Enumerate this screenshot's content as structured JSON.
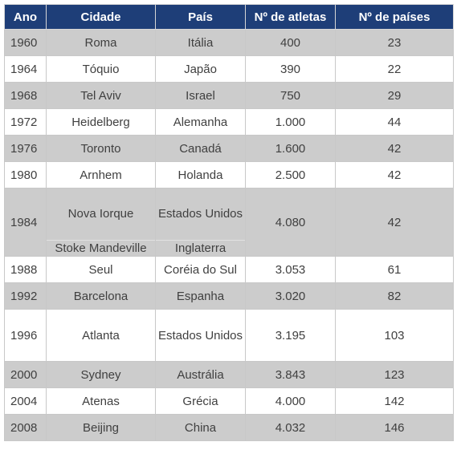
{
  "headers": [
    "Ano",
    "Cidade",
    "País",
    "Nº de atletas",
    "Nº de países"
  ],
  "rows": [
    {
      "ano": "1960",
      "cidade": "Roma",
      "pais": "Itália",
      "atletas": "400",
      "paises": "23"
    },
    {
      "ano": "1964",
      "cidade": "Tóquio",
      "pais": "Japão",
      "atletas": "390",
      "paises": "22"
    },
    {
      "ano": "1968",
      "cidade": "Tel Aviv",
      "pais": "Israel",
      "atletas": "750",
      "paises": "29"
    },
    {
      "ano": "1972",
      "cidade": "Heidelberg",
      "pais": "Alemanha",
      "atletas": "1.000",
      "paises": "44"
    },
    {
      "ano": "1976",
      "cidade": "Toronto",
      "pais": "Canadá",
      "atletas": "1.600",
      "paises": "42"
    },
    {
      "ano": "1980",
      "cidade": "Arnhem",
      "pais": "Holanda",
      "atletas": "2.500",
      "paises": "42"
    },
    {
      "ano": "1984",
      "cidade": "Nova Iorque",
      "cidade2": "Stoke Mandeville",
      "pais": "Estados Unidos",
      "pais2": "Inglaterra",
      "atletas": "4.080",
      "paises": "42"
    },
    {
      "ano": "1988",
      "cidade": "Seul",
      "pais": "Coréia do Sul",
      "atletas": "3.053",
      "paises": "61"
    },
    {
      "ano": "1992",
      "cidade": "Barcelona",
      "pais": "Espanha",
      "atletas": "3.020",
      "paises": "82"
    },
    {
      "ano": "1996",
      "cidade": "Atlanta",
      "pais": "Estados Unidos",
      "atletas": "3.195",
      "paises": "103"
    },
    {
      "ano": "2000",
      "cidade": "Sydney",
      "pais": "Austrália",
      "atletas": "3.843",
      "paises": "123"
    },
    {
      "ano": "2004",
      "cidade": "Atenas",
      "pais": "Grécia",
      "atletas": "4.000",
      "paises": "142"
    },
    {
      "ano": "2008",
      "cidade": "Beijing",
      "pais": "China",
      "atletas": "4.032",
      "paises": "146"
    }
  ]
}
